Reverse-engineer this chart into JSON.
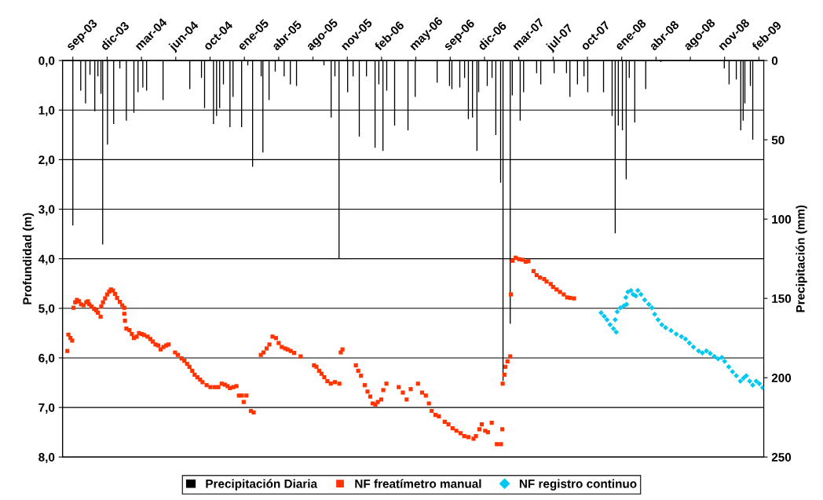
{
  "chart_data": {
    "type": "scatter",
    "ylabel": "Profundidad (m)",
    "y2label": "Precipitación (mm)",
    "xlim": [
      "2003-08-02",
      "2009-03-07"
    ],
    "xticks": [
      {
        "value": "2003-09-01",
        "label": "sep-03"
      },
      {
        "value": "2003-12-10",
        "label": "dic-03"
      },
      {
        "value": "2004-03-19",
        "label": "mar-04"
      },
      {
        "value": "2004-06-27",
        "label": "jun-04"
      },
      {
        "value": "2004-10-05",
        "label": "oct-04"
      },
      {
        "value": "2005-01-13",
        "label": "ene-05"
      },
      {
        "value": "2005-04-23",
        "label": "abr-05"
      },
      {
        "value": "2005-08-01",
        "label": "ago-05"
      },
      {
        "value": "2005-11-09",
        "label": "nov-05"
      },
      {
        "value": "2006-02-17",
        "label": "feb-06"
      },
      {
        "value": "2006-05-28",
        "label": "may-06"
      },
      {
        "value": "2006-09-05",
        "label": "sep-06"
      },
      {
        "value": "2006-12-14",
        "label": "dic-06"
      },
      {
        "value": "2007-03-24",
        "label": "mar-07"
      },
      {
        "value": "2007-07-02",
        "label": "jul-07"
      },
      {
        "value": "2007-10-10",
        "label": "oct-07"
      },
      {
        "value": "2008-01-18",
        "label": "ene-08"
      },
      {
        "value": "2008-04-27",
        "label": "abr-08"
      },
      {
        "value": "2008-08-05",
        "label": "ago-08"
      },
      {
        "value": "2008-11-13",
        "label": "nov-08"
      },
      {
        "value": "2009-02-21",
        "label": "feb-09"
      }
    ],
    "ylim": [
      8,
      0
    ],
    "yticks": [
      {
        "value": 0,
        "label": "0,0"
      },
      {
        "value": 1,
        "label": "1,0"
      },
      {
        "value": 2,
        "label": "2,0"
      },
      {
        "value": 3,
        "label": "3,0"
      },
      {
        "value": 4,
        "label": "4,0"
      },
      {
        "value": 5,
        "label": "5,0"
      },
      {
        "value": 6,
        "label": "6,0"
      },
      {
        "value": 7,
        "label": "7,0"
      },
      {
        "value": 8,
        "label": "8,0"
      }
    ],
    "y2lim": [
      250,
      0
    ],
    "y2ticks": [
      0,
      50,
      100,
      150,
      200,
      250
    ],
    "grid": "y",
    "legend": "bottom",
    "series": [
      {
        "name": "Precipitación Diaria",
        "type": "bar",
        "axis": "y2",
        "color": "#000000",
        "x": [
          "2003-09-01",
          "2003-09-24",
          "2003-10-08",
          "2003-10-21",
          "2003-11-04",
          "2003-11-13",
          "2003-11-22",
          "2003-11-27",
          "2003-12-11",
          "2003-12-29",
          "2004-01-16",
          "2004-02-04",
          "2004-02-26",
          "2004-03-09",
          "2004-03-23",
          "2004-04-03",
          "2004-05-21",
          "2004-08-07",
          "2004-09-10",
          "2004-09-19",
          "2004-10-15",
          "2004-10-24",
          "2004-11-02",
          "2004-11-13",
          "2004-12-02",
          "2004-12-11",
          "2005-01-05",
          "2005-01-23",
          "2005-02-06",
          "2005-03-03",
          "2005-03-08",
          "2005-03-26",
          "2005-04-13",
          "2005-05-09",
          "2005-05-27",
          "2005-06-14",
          "2005-09-02",
          "2005-09-23",
          "2005-10-04",
          "2005-10-16",
          "2005-11-10",
          "2005-11-26",
          "2005-12-14",
          "2006-01-04",
          "2006-01-29",
          "2006-02-09",
          "2006-02-21",
          "2006-03-04",
          "2006-03-27",
          "2006-05-05",
          "2006-05-26",
          "2006-07-29",
          "2006-09-03",
          "2006-09-10",
          "2006-10-03",
          "2006-10-17",
          "2006-10-28",
          "2006-11-09",
          "2006-11-22",
          "2006-11-27",
          "2006-12-22",
          "2007-01-05",
          "2007-01-16",
          "2007-01-30",
          "2007-02-06",
          "2007-02-27",
          "2007-03-05",
          "2007-03-28",
          "2007-04-07",
          "2007-05-15",
          "2007-05-27",
          "2007-07-05",
          "2007-08-10",
          "2007-08-20",
          "2007-09-11",
          "2007-09-30",
          "2007-10-11",
          "2007-11-26",
          "2007-12-21",
          "2007-12-30",
          "2008-01-08",
          "2008-01-20",
          "2008-01-31",
          "2008-02-09",
          "2008-02-25",
          "2008-03-28",
          "2008-05-11",
          "2008-11-12",
          "2008-11-26",
          "2008-12-17",
          "2008-12-30",
          "2009-01-06",
          "2009-01-11",
          "2009-01-27",
          "2009-02-03"
        ],
        "values": [
          104,
          19,
          27,
          9,
          32,
          10,
          21,
          116,
          53,
          40,
          5,
          38,
          33,
          20,
          17,
          19,
          25,
          18,
          11,
          30,
          40,
          35,
          30,
          15,
          42,
          23,
          42,
          3,
          67,
          10,
          58,
          25,
          7,
          10,
          15,
          16,
          3,
          36,
          10,
          125,
          20,
          10,
          48,
          10,
          55,
          15,
          57,
          19,
          41,
          44,
          23,
          14,
          16,
          18,
          17,
          11,
          37,
          36,
          57,
          20,
          16,
          11,
          47,
          77,
          202,
          166,
          22,
          38,
          20,
          8,
          15,
          8,
          8,
          23,
          15,
          10,
          20,
          20,
          35,
          109,
          41,
          44,
          75,
          11,
          39,
          18,
          1,
          5,
          15,
          12,
          44,
          38,
          27,
          16,
          50
        ]
      },
      {
        "name": "NF freatímetro manual",
        "marker": "square",
        "color": "#ff3300",
        "x": [
          "2003-08-16",
          "2003-08-19",
          "2003-08-25",
          "2003-08-30",
          "2003-09-03",
          "2003-09-08",
          "2003-09-13",
          "2003-09-19",
          "2003-09-25",
          "2003-10-02",
          "2003-10-10",
          "2003-10-15",
          "2003-10-19",
          "2003-10-25",
          "2003-11-02",
          "2003-11-08",
          "2003-11-13",
          "2003-11-21",
          "2003-11-23",
          "2003-11-28",
          "2003-12-04",
          "2003-12-10",
          "2003-12-16",
          "2003-12-21",
          "2003-12-27",
          "2004-01-02",
          "2004-01-08",
          "2004-01-16",
          "2004-01-23",
          "2004-01-29",
          "2004-01-29",
          "2004-01-31",
          "2004-02-04",
          "2004-02-13",
          "2004-02-20",
          "2004-02-26",
          "2004-03-05",
          "2004-03-12",
          "2004-03-20",
          "2004-03-27",
          "2004-04-06",
          "2004-04-14",
          "2004-04-21",
          "2004-04-29",
          "2004-05-07",
          "2004-05-14",
          "2004-05-22",
          "2004-05-30",
          "2004-06-06",
          "2004-06-25",
          "2004-07-03",
          "2004-07-14",
          "2004-07-22",
          "2004-07-30",
          "2004-08-06",
          "2004-08-14",
          "2004-08-21",
          "2004-08-29",
          "2004-09-06",
          "2004-09-13",
          "2004-09-25",
          "2004-10-06",
          "2004-10-18",
          "2004-10-29",
          "2004-11-08",
          "2004-11-17",
          "2004-11-25",
          "2004-12-02",
          "2004-12-12",
          "2004-12-21",
          "2004-12-28",
          "2005-01-06",
          "2005-01-11",
          "2005-01-19",
          "2005-02-01",
          "2005-02-09",
          "2005-03-02",
          "2005-03-10",
          "2005-03-19",
          "2005-03-27",
          "2005-04-05",
          "2005-04-15",
          "2005-04-23",
          "2005-05-02",
          "2005-05-12",
          "2005-05-19",
          "2005-05-28",
          "2005-06-07",
          "2005-06-26",
          "2005-08-04",
          "2005-08-11",
          "2005-08-19",
          "2005-08-26",
          "2005-09-03",
          "2005-09-12",
          "2005-09-22",
          "2005-10-04",
          "2005-10-17",
          "2005-10-21",
          "2005-10-26",
          "2005-12-04",
          "2005-12-11",
          "2005-12-19",
          "2005-12-30",
          "2006-01-07",
          "2006-01-15",
          "2006-01-22",
          "2006-01-30",
          "2006-02-06",
          "2006-02-16",
          "2006-02-22",
          "2006-03-03",
          "2006-04-08",
          "2006-04-20",
          "2006-05-01",
          "2006-05-13",
          "2006-06-03",
          "2006-06-15",
          "2006-06-26",
          "2006-07-05",
          "2006-07-13",
          "2006-07-24",
          "2006-08-03",
          "2006-08-20",
          "2006-08-31",
          "2006-09-12",
          "2006-09-23",
          "2006-10-05",
          "2006-10-16",
          "2006-10-28",
          "2006-11-12",
          "2006-11-19",
          "2006-11-29",
          "2006-12-06",
          "2006-12-16",
          "2006-12-24",
          "2007-01-04",
          "2007-01-19",
          "2007-01-31",
          "2007-02-04",
          "2007-02-05",
          "2007-02-10",
          "2007-02-13",
          "2007-02-19",
          "2007-02-27",
          "2007-03-01",
          "2007-03-06",
          "2007-03-15",
          "2007-03-25",
          "2007-04-04",
          "2007-04-13",
          "2007-04-21",
          "2007-05-06",
          "2007-05-15",
          "2007-05-25",
          "2007-06-06",
          "2007-06-13",
          "2007-06-25",
          "2007-07-02",
          "2007-07-12",
          "2007-07-22",
          "2007-08-02",
          "2007-08-12",
          "2007-08-21",
          "2007-09-01"
        ],
        "values": [
          5.86,
          5.53,
          5.6,
          5.65,
          4.99,
          4.88,
          4.83,
          4.86,
          4.92,
          4.94,
          4.88,
          4.86,
          4.92,
          4.96,
          5.01,
          5.04,
          5.09,
          5.17,
          4.96,
          4.88,
          4.8,
          4.72,
          4.66,
          4.62,
          4.64,
          4.71,
          4.79,
          4.87,
          4.94,
          4.99,
          5.11,
          5.25,
          5.41,
          5.44,
          5.52,
          5.6,
          5.57,
          5.5,
          5.52,
          5.54,
          5.57,
          5.62,
          5.67,
          5.73,
          5.75,
          5.83,
          5.78,
          5.75,
          5.73,
          5.89,
          5.94,
          6.01,
          6.06,
          6.12,
          6.18,
          6.26,
          6.34,
          6.39,
          6.44,
          6.49,
          6.55,
          6.59,
          6.59,
          6.59,
          6.52,
          6.54,
          6.57,
          6.61,
          6.59,
          6.57,
          6.76,
          6.76,
          6.89,
          6.76,
          7.07,
          7.1,
          5.94,
          5.89,
          5.81,
          5.73,
          5.57,
          5.6,
          5.7,
          5.78,
          5.81,
          5.83,
          5.86,
          5.9,
          5.97,
          6.15,
          6.18,
          6.26,
          6.32,
          6.39,
          6.47,
          6.52,
          6.49,
          6.52,
          5.89,
          5.83,
          6.15,
          6.26,
          6.36,
          6.55,
          6.68,
          6.78,
          6.92,
          6.94,
          6.89,
          6.84,
          6.65,
          6.52,
          6.59,
          6.7,
          6.84,
          6.63,
          6.52,
          6.7,
          6.76,
          6.92,
          7.07,
          7.15,
          7.18,
          7.29,
          7.34,
          7.42,
          7.47,
          7.52,
          7.58,
          7.6,
          7.63,
          7.58,
          7.44,
          7.34,
          7.47,
          7.5,
          7.31,
          7.74,
          7.74,
          7.44,
          6.52,
          6.34,
          6.18,
          6.07,
          5.97,
          4.72,
          4.04,
          3.98,
          4.01,
          4.02,
          4.06,
          4.05,
          4.25,
          4.33,
          4.38,
          4.41,
          4.46,
          4.51,
          4.57,
          4.62,
          4.67,
          4.72,
          4.78,
          4.79,
          4.8
        ]
      },
      {
        "name": "NF registro continuo",
        "marker": "diamond",
        "color": "#00c8f0",
        "x": [
          "2007-11-19",
          "2007-11-28",
          "2007-12-06",
          "2007-12-15",
          "2007-12-25",
          "2008-01-02",
          "2007-12-30",
          "2008-01-05",
          "2008-01-14",
          "2008-01-24",
          "2008-02-01",
          "2008-01-30",
          "2008-02-05",
          "2008-02-14",
          "2008-02-20",
          "2008-02-28",
          "2008-03-05",
          "2008-03-14",
          "2008-03-25",
          "2008-04-06",
          "2008-04-15",
          "2008-04-23",
          "2008-05-03",
          "2008-05-14",
          "2008-05-25",
          "2008-06-10",
          "2008-06-25",
          "2008-07-10",
          "2008-07-22",
          "2008-08-02",
          "2008-08-14",
          "2008-08-29",
          "2008-09-09",
          "2008-09-21",
          "2008-10-02",
          "2008-10-14",
          "2008-10-25",
          "2008-11-05",
          "2008-11-13",
          "2008-11-25",
          "2008-12-06",
          "2008-12-17",
          "2008-12-29",
          "2009-01-07",
          "2009-01-15",
          "2009-01-25",
          "2009-02-03",
          "2009-02-13",
          "2009-02-22",
          "2009-03-04"
        ],
        "values": [
          5.09,
          5.16,
          5.23,
          5.33,
          5.41,
          5.48,
          5.23,
          5.07,
          4.99,
          4.95,
          4.92,
          4.78,
          4.67,
          4.64,
          4.72,
          4.75,
          4.64,
          4.72,
          4.83,
          4.92,
          4.99,
          5.12,
          5.23,
          5.33,
          5.39,
          5.45,
          5.52,
          5.57,
          5.62,
          5.7,
          5.78,
          5.86,
          5.9,
          5.86,
          5.91,
          5.97,
          6.02,
          5.99,
          6.07,
          6.18,
          6.28,
          6.36,
          6.47,
          6.41,
          6.36,
          6.47,
          6.55,
          6.47,
          6.52,
          6.6
        ]
      }
    ]
  }
}
